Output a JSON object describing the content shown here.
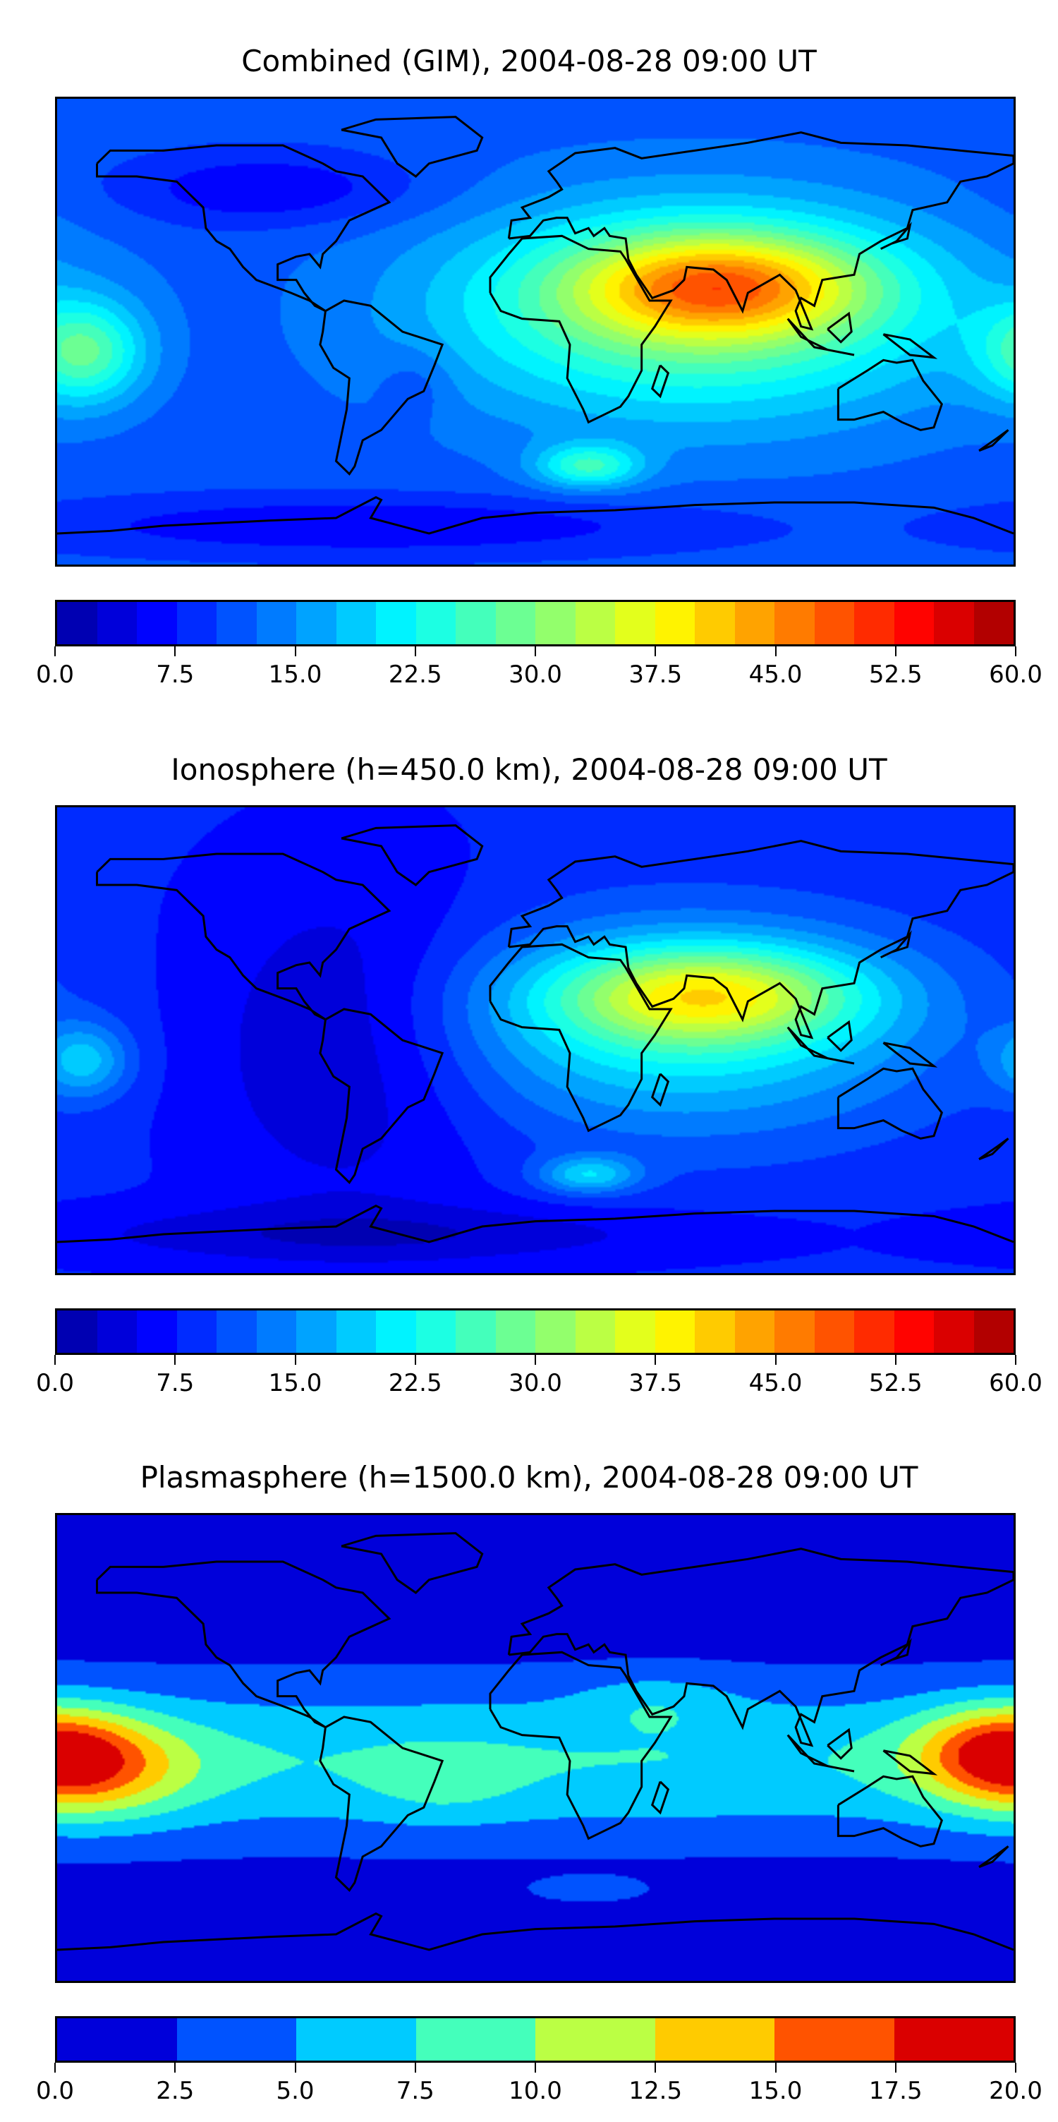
{
  "chart_data": [
    {
      "type": "heatmap",
      "title": "Combined (GIM), 2004-08-28 09:00 UT",
      "colorbar": {
        "min": 0,
        "max": 60,
        "step": 2.5,
        "ticks": [
          "0.0",
          "7.5",
          "15.0",
          "22.5",
          "30.0",
          "37.5",
          "45.0",
          "52.5",
          "60.0"
        ]
      },
      "field": {
        "base": 11,
        "features": [
          {
            "lon": 70,
            "lat": 18,
            "value": 22,
            "slon": 38,
            "slat": 14
          },
          {
            "lon": 60,
            "lat": 8,
            "value": 18,
            "slon": 70,
            "slat": 30
          },
          {
            "lon": -170,
            "lat": -8,
            "value": 15,
            "slon": 16,
            "slat": 14
          },
          {
            "lon": 20,
            "lat": -52,
            "value": 13,
            "slon": 14,
            "slat": 6
          },
          {
            "lon": -100,
            "lat": 55,
            "value": -6,
            "slon": 40,
            "slat": 10
          },
          {
            "lon": -60,
            "lat": -75,
            "value": -6,
            "slon": 90,
            "slat": 8
          },
          {
            "lon": -45,
            "lat": -20,
            "value": -3,
            "slon": 10,
            "slat": 10
          }
        ]
      }
    },
    {
      "type": "heatmap",
      "title": "Ionosphere  (h=450.0 km), 2004-08-28 09:00 UT",
      "colorbar": {
        "min": 0,
        "max": 60,
        "step": 2.5,
        "ticks": [
          "0.0",
          "7.5",
          "15.0",
          "22.5",
          "30.0",
          "37.5",
          "45.0",
          "52.5",
          "60.0"
        ]
      },
      "field": {
        "base": 8,
        "features": [
          {
            "lon": 65,
            "lat": 18,
            "value": 20,
            "slon": 40,
            "slat": 13
          },
          {
            "lon": 55,
            "lat": 5,
            "value": 14,
            "slon": 65,
            "slat": 28
          },
          {
            "lon": -170,
            "lat": -8,
            "value": 10,
            "slon": 12,
            "slat": 10
          },
          {
            "lon": 20,
            "lat": -52,
            "value": 11,
            "slon": 13,
            "slat": 5
          },
          {
            "lon": -70,
            "lat": 0,
            "value": -6,
            "slon": 40,
            "slat": 45
          },
          {
            "lon": -60,
            "lat": -75,
            "value": -5,
            "slon": 90,
            "slat": 8
          }
        ]
      }
    },
    {
      "type": "heatmap",
      "title": "Plasmasphere (h=1500.0 km), 2004-08-28 09:00 UT",
      "colorbar": {
        "min": 0,
        "max": 20,
        "step": 2.5,
        "ticks": [
          "0.0",
          "2.5",
          "5.0",
          "7.5",
          "10.0",
          "12.5",
          "15.0",
          "17.5",
          "20.0"
        ]
      },
      "field": {
        "base": 1,
        "features": [
          {
            "lon": 0,
            "lat": -5,
            "value": 6.5,
            "slon": 400,
            "slat": 22
          },
          {
            "lon": -170,
            "lat": -8,
            "value": 9,
            "slon": 28,
            "slat": 14
          },
          {
            "lon": 175,
            "lat": 0,
            "value": 8,
            "slon": 22,
            "slat": 12
          },
          {
            "lon": -35,
            "lat": -15,
            "value": 2,
            "slon": 20,
            "slat": 10
          },
          {
            "lon": 45,
            "lat": 18,
            "value": 2.5,
            "slon": 20,
            "slat": 8
          },
          {
            "lon": 20,
            "lat": -55,
            "value": 2.2,
            "slon": 18,
            "slat": 4
          }
        ]
      }
    }
  ]
}
